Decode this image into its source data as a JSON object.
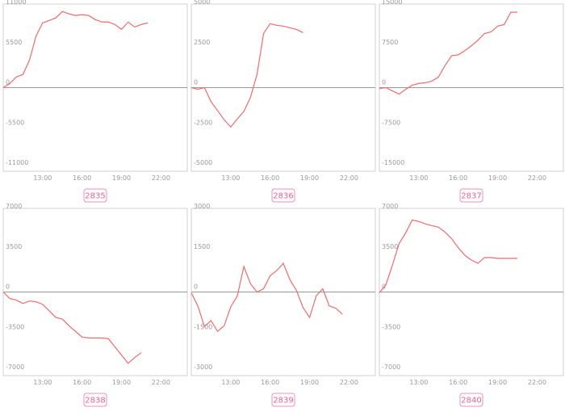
{
  "chart_data": [
    {
      "type": "line",
      "title": "2835",
      "color": "#f26b6b",
      "x": [
        10,
        10.5,
        11,
        11.5,
        12,
        12.5,
        13,
        13.5,
        14,
        14.5,
        15,
        15.5,
        16,
        16.5,
        17,
        17.5,
        18,
        18.5,
        19,
        19.5,
        20,
        20.5,
        21
      ],
      "values": [
        0,
        560,
        1460,
        1800,
        3800,
        7070,
        8860,
        9200,
        9540,
        10430,
        10100,
        9870,
        9990,
        9870,
        9310,
        8980,
        8980,
        8640,
        7970,
        8980,
        8300,
        8640,
        8860
      ],
      "xlim": [
        10,
        24
      ],
      "xticks": [
        {
          "value": 13,
          "label": "13:00"
        },
        {
          "value": 16,
          "label": "16:00"
        },
        {
          "value": 19,
          "label": "19:00"
        },
        {
          "value": 22,
          "label": "22:00"
        }
      ],
      "ylim": [
        -11000,
        11000
      ],
      "yticks": [
        11000,
        5500,
        0,
        -5500,
        -11000
      ]
    },
    {
      "type": "line",
      "title": "2836",
      "color": "#f26b6b",
      "x": [
        10,
        10.5,
        11,
        11.5,
        12,
        12.5,
        13,
        13.5,
        14,
        14.5,
        15,
        15.5,
        16,
        16.5,
        17,
        17.5,
        18,
        18.5
      ],
      "values": [
        0,
        -100,
        0,
        -870,
        -1430,
        -2000,
        -2450,
        -1940,
        -1480,
        -610,
        820,
        3370,
        3980,
        3880,
        3830,
        3720,
        3620,
        3420
      ],
      "xlim": [
        10,
        24
      ],
      "xticks": [
        {
          "value": 13,
          "label": "13:00"
        },
        {
          "value": 16,
          "label": "16:00"
        },
        {
          "value": 19,
          "label": "19:00"
        },
        {
          "value": 22,
          "label": "22:00"
        }
      ],
      "ylim": [
        -5000,
        5000
      ],
      "yticks": [
        5000,
        2500,
        0,
        -2500,
        -5000
      ]
    },
    {
      "type": "line",
      "title": "2837",
      "color": "#f26b6b",
      "x": [
        10,
        10.5,
        11,
        11.5,
        12,
        12.5,
        13,
        13.5,
        14,
        14.5,
        15,
        15.5,
        16,
        16.5,
        17,
        17.5,
        18,
        18.5,
        19,
        19.5,
        20,
        20.5
      ],
      "values": [
        -150,
        0,
        -610,
        -1220,
        -310,
        460,
        770,
        920,
        1220,
        1990,
        4130,
        5970,
        6120,
        6890,
        7800,
        8870,
        10100,
        10400,
        11480,
        11780,
        14080,
        14080
      ],
      "xlim": [
        10,
        24
      ],
      "xticks": [
        {
          "value": 13,
          "label": "13:00"
        },
        {
          "value": 16,
          "label": "16:00"
        },
        {
          "value": 19,
          "label": "19:00"
        },
        {
          "value": 22,
          "label": "22:00"
        }
      ],
      "ylim": [
        -15000,
        15000
      ],
      "yticks": [
        15000,
        7500,
        0,
        -7500,
        -15000
      ]
    },
    {
      "type": "line",
      "title": "2838",
      "color": "#f26b6b",
      "x": [
        10,
        10.5,
        11,
        11.5,
        12,
        12.5,
        13,
        13.5,
        14,
        14.5,
        15,
        15.5,
        16,
        16.5,
        17,
        17.5,
        18,
        18.5,
        19,
        19.5,
        20,
        20.5
      ],
      "values": [
        0,
        -570,
        -710,
        -1000,
        -780,
        -860,
        -1070,
        -1640,
        -2210,
        -2360,
        -2930,
        -3430,
        -3930,
        -4000,
        -4000,
        -4000,
        -4070,
        -4780,
        -5500,
        -6210,
        -5710,
        -5280
      ],
      "xlim": [
        10,
        24
      ],
      "xticks": [
        {
          "value": 13,
          "label": "13:00"
        },
        {
          "value": 16,
          "label": "16:00"
        },
        {
          "value": 19,
          "label": "19:00"
        },
        {
          "value": 22,
          "label": "22:00"
        }
      ],
      "ylim": [
        -7000,
        7000
      ],
      "yticks": [
        7000,
        3500,
        0,
        -3500,
        -7000
      ]
    },
    {
      "type": "line",
      "title": "2839",
      "color": "#f26b6b",
      "x": [
        10,
        10.5,
        11,
        11.5,
        12,
        12.5,
        13,
        13.5,
        14,
        14.5,
        15,
        15.5,
        16,
        16.5,
        17,
        17.5,
        18,
        18.5,
        19,
        19.5,
        20,
        20.5,
        21,
        21.5
      ],
      "values": [
        -30,
        -520,
        -1290,
        -1070,
        -1470,
        -1260,
        -550,
        -150,
        950,
        310,
        0,
        120,
        610,
        800,
        1070,
        460,
        60,
        -580,
        -950,
        -150,
        120,
        -520,
        -610,
        -830
      ],
      "xlim": [
        10,
        24
      ],
      "xticks": [
        {
          "value": 13,
          "label": "13:00"
        },
        {
          "value": 16,
          "label": "16:00"
        },
        {
          "value": 19,
          "label": "19:00"
        },
        {
          "value": 22,
          "label": "22:00"
        }
      ],
      "ylim": [
        -3000,
        3000
      ],
      "yticks": [
        3000,
        1500,
        0,
        -1500,
        -3000
      ]
    },
    {
      "type": "line",
      "title": "2840",
      "color": "#f26b6b",
      "x": [
        10,
        10.5,
        11,
        11.5,
        12,
        12.5,
        13,
        13.5,
        14,
        14.5,
        15,
        15.5,
        16,
        16.5,
        17,
        17.5,
        18,
        18.5,
        19,
        19.5,
        20,
        20.5
      ],
      "values": [
        -70,
        640,
        2360,
        4210,
        5140,
        6280,
        6140,
        5930,
        5780,
        5640,
        5210,
        4640,
        3860,
        3210,
        2780,
        2500,
        3000,
        3000,
        2930,
        2930,
        2930,
        2930
      ],
      "xlim": [
        10,
        24
      ],
      "xticks": [
        {
          "value": 13,
          "label": "13:00"
        },
        {
          "value": 16,
          "label": "16:00"
        },
        {
          "value": 19,
          "label": "19:00"
        },
        {
          "value": 22,
          "label": "22:00"
        }
      ],
      "ylim": [
        -7000,
        7000
      ],
      "yticks": [
        7000,
        3500,
        0,
        -3500,
        -7000
      ]
    }
  ]
}
